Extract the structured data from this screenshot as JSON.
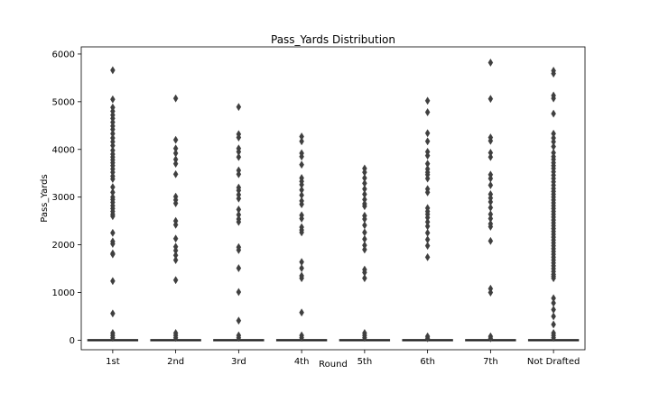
{
  "chart_data": {
    "type": "boxplot",
    "title": "Pass_Yards Distribution",
    "xlabel": "Round",
    "ylabel": "Pass_Yards",
    "ylim": [
      -200,
      6150
    ],
    "yticks": [
      0,
      1000,
      2000,
      3000,
      4000,
      5000,
      6000
    ],
    "categories": [
      "1st",
      "2nd",
      "3rd",
      "4th",
      "5th",
      "6th",
      "7th",
      "Not Drafted"
    ],
    "box_values": [
      0,
      0,
      0,
      0,
      0,
      0,
      0,
      0
    ],
    "colors": {
      "box": "#3f3f3f",
      "flier": "#3f3f3f",
      "axis": "#000000"
    },
    "outliers": [
      [
        5660,
        5050,
        4880,
        4800,
        4720,
        4650,
        4570,
        4490,
        4420,
        4330,
        4240,
        4160,
        4080,
        3980,
        3900,
        3840,
        3780,
        3720,
        3660,
        3590,
        3520,
        3440,
        3380,
        3210,
        3100,
        3000,
        2950,
        2890,
        2820,
        2760,
        2700,
        2640,
        2600,
        2250,
        2070,
        2020,
        1820,
        1800,
        1240,
        560,
        150,
        100,
        50
      ],
      [
        5070,
        4200,
        4020,
        3920,
        3790,
        3700,
        3480,
        3010,
        2940,
        2870,
        2500,
        2420,
        2130,
        1960,
        1880,
        1780,
        1680,
        1260,
        150,
        100,
        50
      ],
      [
        4890,
        4320,
        4250,
        4020,
        3950,
        3840,
        3560,
        3480,
        3200,
        3140,
        3050,
        2970,
        2740,
        2630,
        2540,
        2480,
        1950,
        1890,
        1510,
        1010,
        410,
        100,
        50
      ],
      [
        4270,
        4170,
        3920,
        3850,
        3680,
        3400,
        3330,
        3260,
        3150,
        3040,
        2920,
        2850,
        2620,
        2550,
        2370,
        2310,
        2260,
        1640,
        1510,
        1350,
        1300,
        580,
        100,
        50
      ],
      [
        3600,
        3520,
        3400,
        3290,
        3170,
        3060,
        2950,
        2860,
        2810,
        2610,
        2540,
        2410,
        2260,
        2120,
        1990,
        1900,
        1480,
        1420,
        1300,
        150,
        100,
        50
      ],
      [
        5020,
        4780,
        4340,
        4170,
        3950,
        3870,
        3700,
        3590,
        3520,
        3470,
        3390,
        3170,
        3100,
        2770,
        2700,
        2640,
        2570,
        2480,
        2390,
        2250,
        2110,
        1980,
        1740,
        80,
        40
      ],
      [
        5820,
        5060,
        4250,
        4180,
        3930,
        3840,
        3470,
        3390,
        3250,
        3060,
        2980,
        2900,
        2780,
        2640,
        2550,
        2440,
        2380,
        2080,
        1080,
        1000,
        80,
        40
      ],
      [
        5650,
        5590,
        5130,
        5070,
        4750,
        4330,
        4240,
        4160,
        4060,
        3930,
        3850,
        3790,
        3720,
        3660,
        3600,
        3530,
        3460,
        3390,
        3320,
        3250,
        3180,
        3120,
        3060,
        3000,
        2940,
        2880,
        2820,
        2760,
        2700,
        2640,
        2580,
        2520,
        2460,
        2400,
        2340,
        2280,
        2220,
        2160,
        2100,
        2040,
        1980,
        1920,
        1860,
        1800,
        1740,
        1680,
        1620,
        1560,
        1500,
        1440,
        1380,
        1340,
        1300,
        880,
        780,
        640,
        500,
        330,
        150,
        100,
        50
      ]
    ]
  }
}
